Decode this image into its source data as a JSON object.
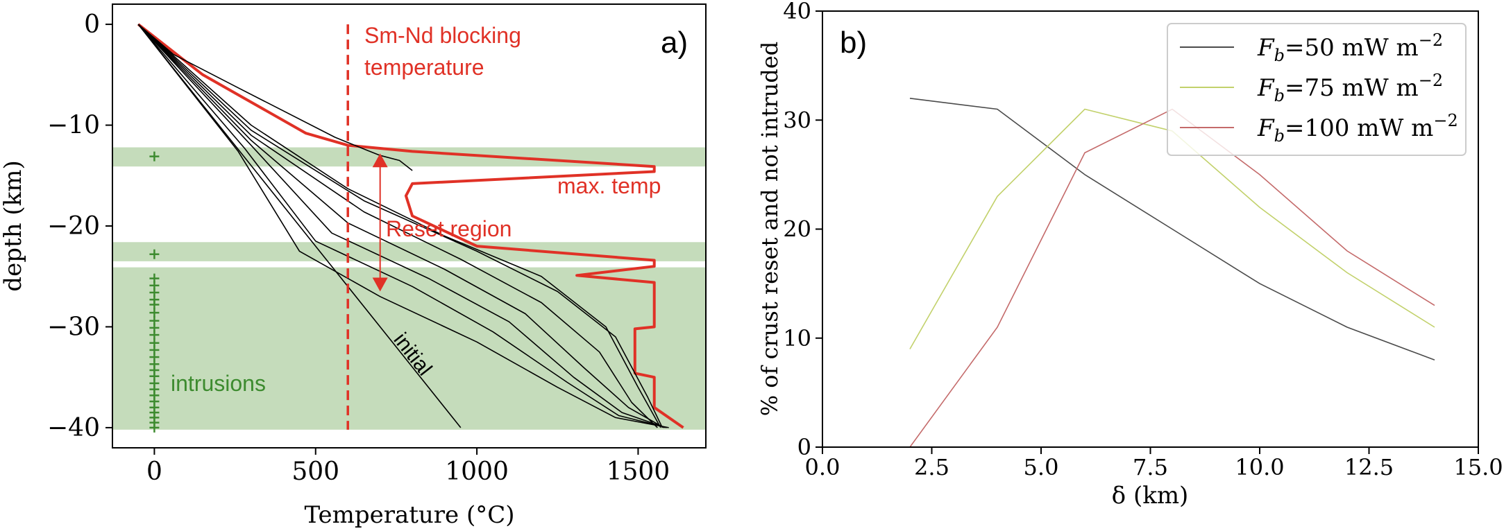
{
  "chart_data": [
    {
      "type": "line",
      "panel_label": "a)",
      "xlabel": "Temperature (°C)",
      "ylabel": "depth (km)",
      "xlim": [
        -130,
        1710
      ],
      "ylim": [
        -42,
        2
      ],
      "xticks": [
        0,
        500,
        1000,
        1500
      ],
      "yticks": [
        0,
        -10,
        -20,
        -30,
        -40
      ],
      "grid": false,
      "bands": [
        {
          "y_from": -12.2,
          "y_to": -14.1,
          "color": "#c5dcbb"
        },
        {
          "y_from": -21.6,
          "y_to": -23.5,
          "color": "#c5dcbb"
        },
        {
          "y_from": -24.1,
          "y_to": -40.2,
          "color": "#c5dcbb"
        }
      ],
      "blocking_temperature": {
        "x": 600,
        "label_line1": "Sm-Nd blocking",
        "label_line2": "temperature",
        "color": "#e03126"
      },
      "reset_region": {
        "x": 700,
        "y_top": -12.8,
        "y_bottom": -26.5,
        "label": "Reset region",
        "color": "#e03126"
      },
      "annotations": {
        "max_temp": "max. temp",
        "initial": "initial",
        "intrusions": "intrusions"
      },
      "intrusion_markers": {
        "x": 0,
        "color": "#3d8b2f",
        "depths": [
          -13.1,
          -22.8,
          -25.2,
          -25.9,
          -26.6,
          -27.3,
          -27.8,
          -28.6,
          -29.4,
          -30.1,
          -30.8,
          -31.6,
          -32.3,
          -33.0,
          -33.7,
          -34.3,
          -34.9,
          -35.6,
          -36.2,
          -36.8,
          -37.4,
          -38.0,
          -38.5,
          -39.0,
          -39.5,
          -40.0
        ]
      },
      "series": [
        {
          "role": "initial",
          "color": "#000000",
          "x": [
            -50,
            200,
            500,
            750,
            950
          ],
          "y": [
            0,
            -10,
            -22,
            -32,
            -40
          ]
        },
        {
          "role": "max_temp",
          "color": "#e03126",
          "x": [
            -50,
            150,
            470,
            600,
            800,
            1550,
            1550,
            800,
            780,
            800,
            900,
            1000,
            1550,
            1550,
            1310,
            1550,
            1550,
            1490,
            1490,
            1550,
            1550,
            1640
          ],
          "y": [
            0,
            -5,
            -10.8,
            -12,
            -12.6,
            -14.1,
            -14.6,
            -15.8,
            -17,
            -19,
            -20.5,
            -22,
            -23.4,
            -24,
            -24.9,
            -25.6,
            -30,
            -30.2,
            -34.6,
            -35,
            -38,
            -40
          ]
        },
        {
          "role": "profile",
          "color": "#000000",
          "x": [
            -50,
            60,
            260,
            560,
            660,
            700,
            760,
            800
          ],
          "y": [
            0,
            -3,
            -6.3,
            -11.2,
            -12.5,
            -13,
            -13.5,
            -14.5
          ]
        },
        {
          "role": "profile",
          "color": "#000000",
          "x": [
            -50,
            300,
            600,
            900,
            1200,
            1400,
            1500,
            1570
          ],
          "y": [
            0,
            -10,
            -16.3,
            -21,
            -25,
            -30,
            -36,
            -40
          ]
        },
        {
          "role": "profile",
          "color": "#000000",
          "x": [
            -50,
            300,
            650,
            1000,
            1250,
            1430,
            1530,
            1575
          ],
          "y": [
            0,
            -10.5,
            -17.5,
            -22.5,
            -26.5,
            -31,
            -37,
            -40
          ]
        },
        {
          "role": "profile",
          "color": "#000000",
          "x": [
            -50,
            300,
            650,
            950,
            1200,
            1380,
            1480,
            1560
          ],
          "y": [
            0,
            -11,
            -18.6,
            -23.3,
            -27.6,
            -32.5,
            -37.5,
            -40
          ]
        },
        {
          "role": "profile",
          "color": "#000000",
          "x": [
            -50,
            300,
            600,
            900,
            1150,
            1330,
            1470,
            1580
          ],
          "y": [
            0,
            -11.5,
            -19.7,
            -24.3,
            -28.7,
            -34,
            -38,
            -40
          ]
        },
        {
          "role": "profile",
          "color": "#000000",
          "x": [
            -50,
            300,
            550,
            850,
            1100,
            1300,
            1450,
            1585
          ],
          "y": [
            0,
            -12,
            -20.7,
            -25.2,
            -29.5,
            -35,
            -38.5,
            -40
          ]
        },
        {
          "role": "profile",
          "color": "#000000",
          "x": [
            -50,
            280,
            500,
            800,
            1050,
            1280,
            1440,
            1590
          ],
          "y": [
            0,
            -12.3,
            -21.5,
            -26,
            -30.5,
            -35.5,
            -38.8,
            -40
          ]
        },
        {
          "role": "profile",
          "color": "#000000",
          "x": [
            -50,
            260,
            450,
            700,
            1000,
            1250,
            1430,
            1595
          ],
          "y": [
            0,
            -12.6,
            -22.5,
            -27,
            -31.5,
            -36,
            -39,
            -40
          ]
        }
      ]
    },
    {
      "type": "line",
      "panel_label": "b)",
      "xlabel": "δ (km)",
      "ylabel": "% of crust reset and not intruded",
      "xlim": [
        0,
        15
      ],
      "ylim": [
        0,
        40
      ],
      "xticks": [
        0.0,
        2.5,
        5.0,
        7.5,
        10.0,
        12.5,
        15.0
      ],
      "yticks": [
        0,
        10,
        20,
        30,
        40
      ],
      "legend_position": "top-right",
      "grid": false,
      "series": [
        {
          "name_var": "F",
          "name_sub": "b",
          "name_value": "=50 mW m",
          "name_exp": "−2",
          "color": "#4a4a4a",
          "x": [
            2,
            4,
            6,
            8,
            10,
            12,
            14
          ],
          "y": [
            32,
            31,
            25,
            20,
            15,
            11,
            8
          ]
        },
        {
          "name_var": "F",
          "name_sub": "b",
          "name_value": "=75 mW m",
          "name_exp": "−2",
          "color": "#c2d16b",
          "x": [
            2,
            4,
            6,
            8,
            10,
            12,
            14
          ],
          "y": [
            9,
            23,
            31,
            29,
            22,
            16,
            11
          ]
        },
        {
          "name_var": "F",
          "name_sub": "b",
          "name_value": "=100 mW m",
          "name_exp": "−2",
          "color": "#c46a6a",
          "x": [
            2,
            4,
            6,
            8,
            10,
            12,
            14
          ],
          "y": [
            0,
            11,
            27,
            31,
            25,
            18,
            13
          ]
        }
      ]
    }
  ]
}
